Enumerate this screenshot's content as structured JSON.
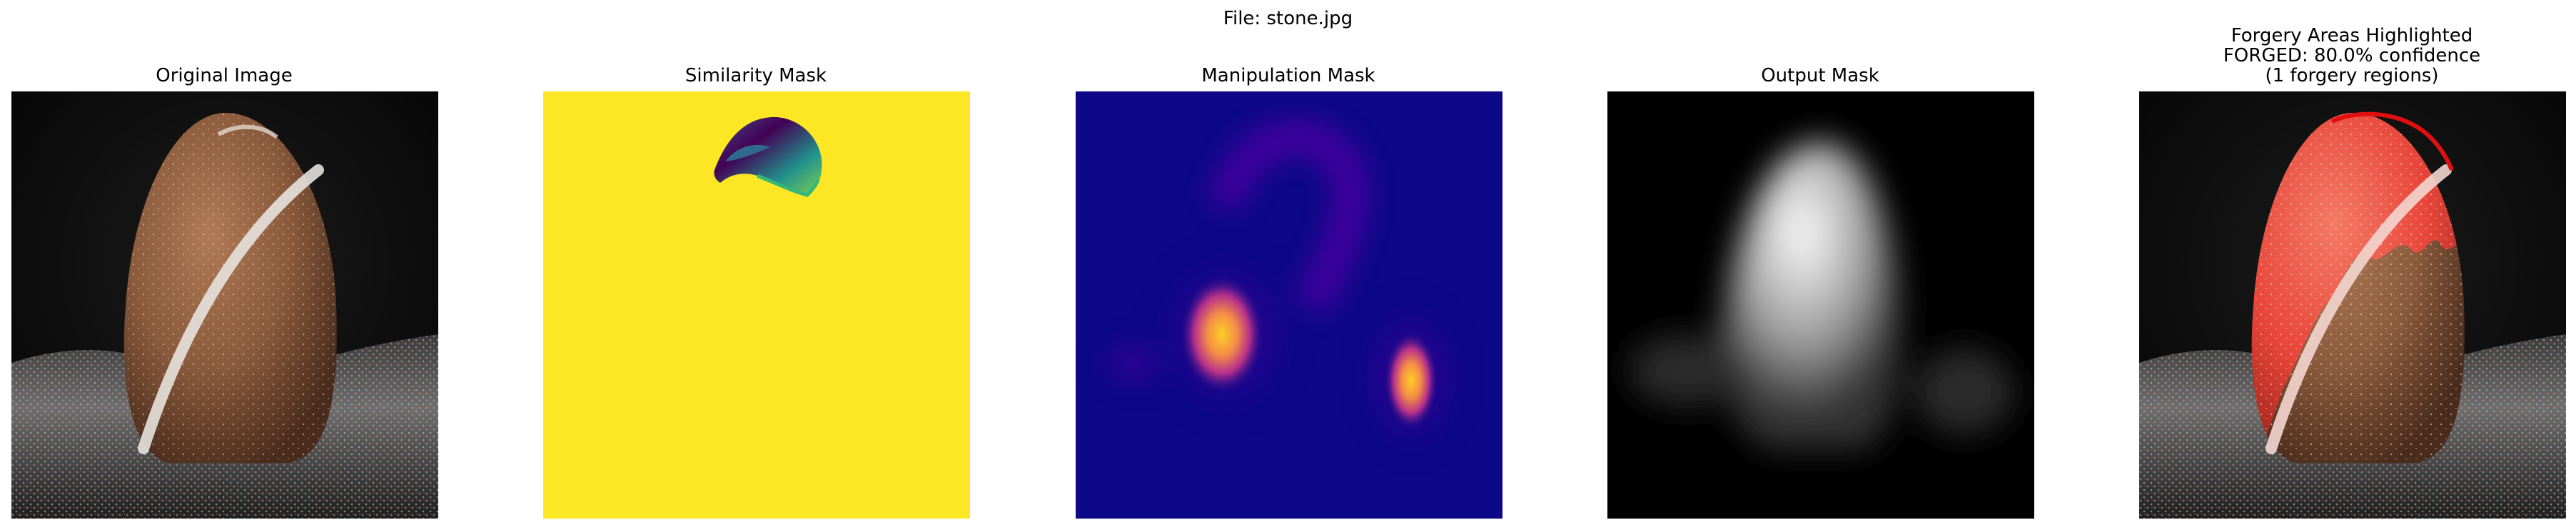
{
  "suptitle": "File: stone.jpg",
  "panels": [
    {
      "title": "Original Image"
    },
    {
      "title": "Similarity Mask"
    },
    {
      "title": "Manipulation Mask"
    },
    {
      "title": "Output Mask"
    },
    {
      "title_lines": [
        "Forgery Areas Highlighted",
        "FORGED: 80.0% confidence",
        "(1 forgery regions)"
      ]
    }
  ],
  "colors": {
    "stone_brown": "#8a5a3c",
    "similarity_yellow": "#fde725",
    "manipulation_bg": "#0d0887",
    "highlight_red": "#e8463a"
  }
}
